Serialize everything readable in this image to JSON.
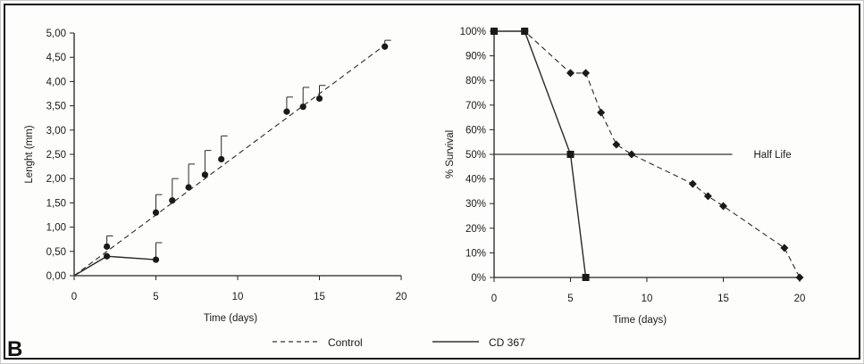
{
  "figure": {
    "panel_label": "B",
    "legend": [
      {
        "name": "Control",
        "style": "dashed"
      },
      {
        "name": "CD 367",
        "style": "solid"
      }
    ]
  },
  "chart_data": [
    {
      "type": "line",
      "title": "",
      "xlabel": "Time (days)",
      "ylabel": "Lenght (mm)",
      "xlim": [
        0,
        20
      ],
      "ylim": [
        0,
        5
      ],
      "xticks": [
        "0",
        "5",
        "10",
        "15",
        "20"
      ],
      "xtick_values": [
        0,
        5,
        10,
        15,
        20
      ],
      "yticks": [
        "0,00",
        "0,50",
        "1,00",
        "1,50",
        "2,00",
        "2,50",
        "3,00",
        "3,50",
        "4,00",
        "4,50",
        "5,00"
      ],
      "ytick_values": [
        0,
        0.5,
        1,
        1.5,
        2,
        2.5,
        3,
        3.5,
        4,
        4.5,
        5
      ],
      "grid": false,
      "series": [
        {
          "name": "Control",
          "style": "dashed",
          "line": [
            [
              0,
              0
            ],
            [
              19,
              4.75
            ]
          ],
          "points": [
            {
              "x": 2,
              "y": 0.6,
              "err": 0.22
            },
            {
              "x": 5,
              "y": 1.3,
              "err": 0.37
            },
            {
              "x": 6,
              "y": 1.55,
              "err": 0.45
            },
            {
              "x": 7,
              "y": 1.82,
              "err": 0.48
            },
            {
              "x": 8,
              "y": 2.08,
              "err": 0.5
            },
            {
              "x": 9,
              "y": 2.4,
              "err": 0.48
            },
            {
              "x": 13,
              "y": 3.38,
              "err": 0.3
            },
            {
              "x": 14,
              "y": 3.48,
              "err": 0.4
            },
            {
              "x": 15,
              "y": 3.65,
              "err": 0.27
            },
            {
              "x": 19,
              "y": 4.72,
              "err": 0.13
            }
          ]
        },
        {
          "name": "CD 367",
          "style": "solid",
          "line": [
            [
              0,
              0
            ],
            [
              2,
              0.4
            ],
            [
              5,
              0.33
            ]
          ],
          "points": [
            {
              "x": 2,
              "y": 0.4,
              "err": 0
            },
            {
              "x": 5,
              "y": 0.33,
              "err": 0.35
            }
          ]
        }
      ]
    },
    {
      "type": "line",
      "title": "",
      "xlabel": "Time (days)",
      "ylabel": "% Survival",
      "xlim": [
        0,
        20
      ],
      "ylim": [
        0,
        100
      ],
      "xticks": [
        "0",
        "5",
        "10",
        "15",
        "20"
      ],
      "xtick_values": [
        0,
        5,
        10,
        15,
        20
      ],
      "yticks": [
        "0%",
        "10%",
        "20%",
        "30%",
        "40%",
        "50%",
        "60%",
        "70%",
        "80%",
        "90%",
        "100%"
      ],
      "ytick_values": [
        0,
        10,
        20,
        30,
        40,
        50,
        60,
        70,
        80,
        90,
        100
      ],
      "grid": false,
      "reference_line": {
        "label": "Half Life",
        "y": 50,
        "x_range": [
          0,
          15
        ]
      },
      "series": [
        {
          "name": "Control",
          "style": "dashed",
          "marker": "diamond",
          "points": [
            {
              "x": 0,
              "y": 100
            },
            {
              "x": 2,
              "y": 100
            },
            {
              "x": 5,
              "y": 83
            },
            {
              "x": 6,
              "y": 83
            },
            {
              "x": 7,
              "y": 67
            },
            {
              "x": 8,
              "y": 54
            },
            {
              "x": 9,
              "y": 50
            },
            {
              "x": 13,
              "y": 38
            },
            {
              "x": 14,
              "y": 33
            },
            {
              "x": 15,
              "y": 29
            },
            {
              "x": 19,
              "y": 12
            },
            {
              "x": 20,
              "y": 0
            }
          ]
        },
        {
          "name": "CD 367",
          "style": "solid",
          "marker": "square",
          "points": [
            {
              "x": 0,
              "y": 100
            },
            {
              "x": 2,
              "y": 100
            },
            {
              "x": 5,
              "y": 50
            },
            {
              "x": 6,
              "y": 0
            }
          ]
        }
      ]
    }
  ]
}
